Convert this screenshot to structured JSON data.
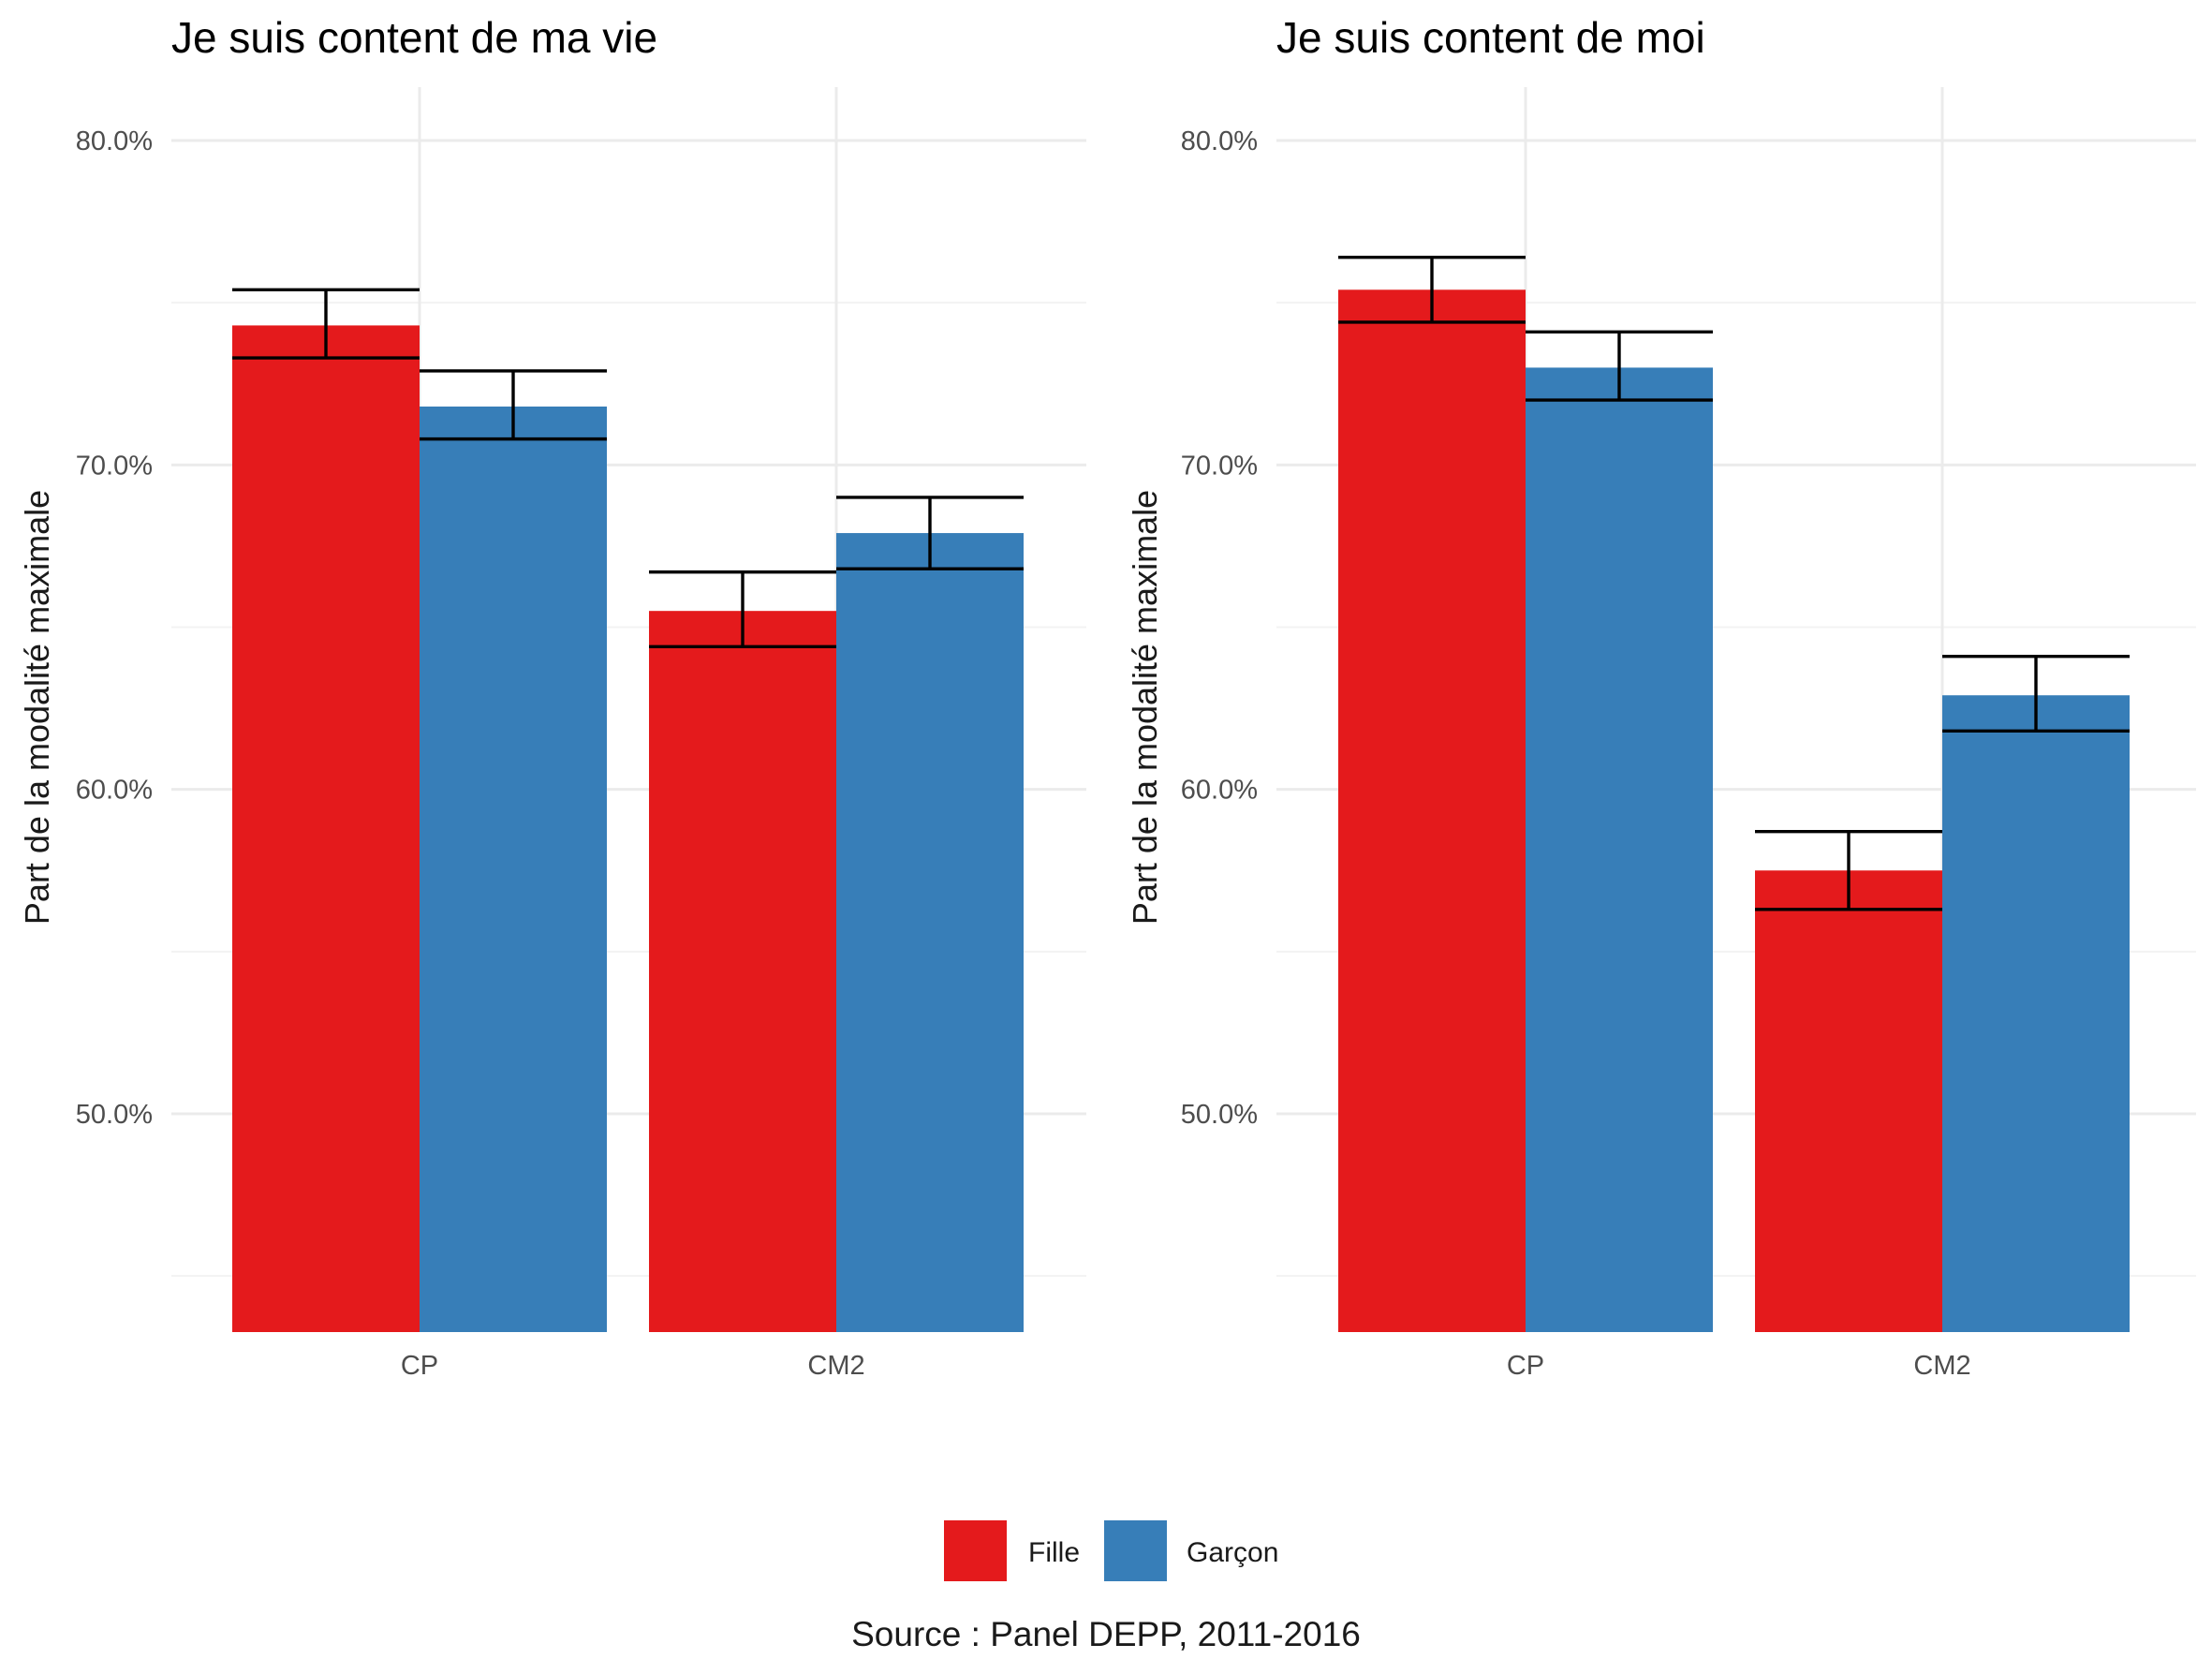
{
  "chart_data": [
    {
      "type": "bar",
      "title": "Je suis content de ma vie",
      "ylabel": "Part de la modalité maximale",
      "xlabel": "",
      "categories": [
        "CP",
        "CM2"
      ],
      "ylim": [
        0.433,
        0.817
      ],
      "yticks": [
        0.5,
        0.6,
        0.7,
        0.8
      ],
      "ytick_labels": [
        "50.0%",
        "60.0%",
        "70.0%",
        "80.0%"
      ],
      "series": [
        {
          "name": "Fille",
          "color": "#E41A1C",
          "values": [
            0.743,
            0.655
          ],
          "err_low": [
            0.733,
            0.644
          ],
          "err_high": [
            0.754,
            0.667
          ]
        },
        {
          "name": "Garçon",
          "color": "#377EB8",
          "values": [
            0.718,
            0.679
          ],
          "err_low": [
            0.708,
            0.668
          ],
          "err_high": [
            0.729,
            0.69
          ]
        }
      ]
    },
    {
      "type": "bar",
      "title": "Je suis content de moi",
      "ylabel": "Part de la modalité maximale",
      "xlabel": "",
      "categories": [
        "CP",
        "CM2"
      ],
      "ylim": [
        0.433,
        0.817
      ],
      "yticks": [
        0.5,
        0.6,
        0.7,
        0.8
      ],
      "ytick_labels": [
        "50.0%",
        "60.0%",
        "70.0%",
        "80.0%"
      ],
      "series": [
        {
          "name": "Fille",
          "color": "#E41A1C",
          "values": [
            0.754,
            0.575
          ],
          "err_low": [
            0.744,
            0.563
          ],
          "err_high": [
            0.764,
            0.587
          ]
        },
        {
          "name": "Garçon",
          "color": "#377EB8",
          "values": [
            0.73,
            0.629
          ],
          "err_low": [
            0.72,
            0.618
          ],
          "err_high": [
            0.741,
            0.641
          ]
        }
      ]
    }
  ],
  "legend": [
    {
      "label": "Fille",
      "color": "#E41A1C"
    },
    {
      "label": "Garçon",
      "color": "#377EB8"
    }
  ],
  "caption": "Source : Panel DEPP, 2011-2016"
}
